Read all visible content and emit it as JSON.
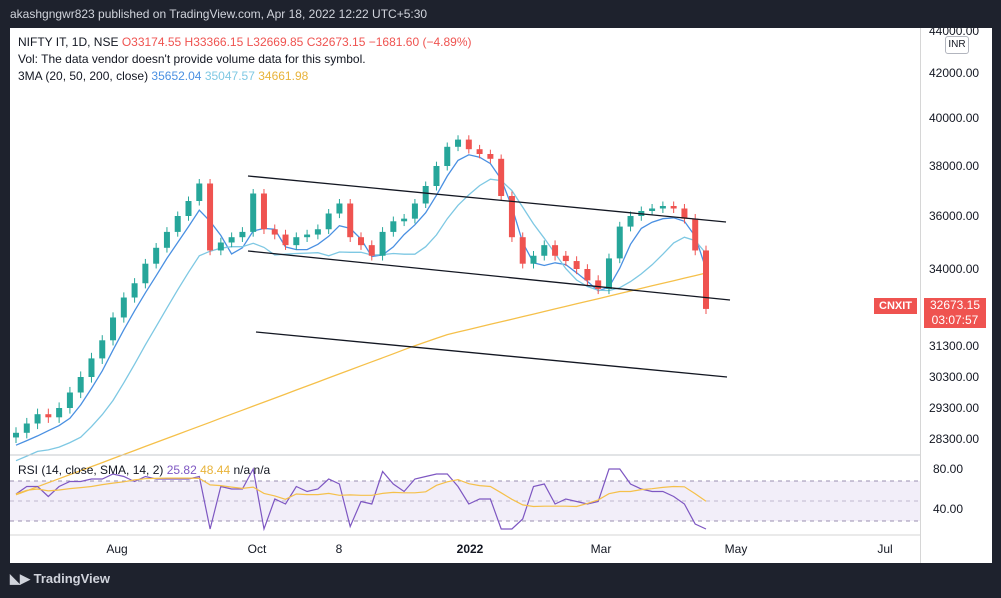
{
  "header": {
    "text": "akashgngwr823 published on TradingView.com, Apr 18, 2022 12:22 UTC+5:30"
  },
  "legend": {
    "symbol": "NIFTY IT, 1D, NSE",
    "open": "O33174.55",
    "high": "H33366.15",
    "low": "L32669.85",
    "close": "C32673.15",
    "change": "−1681.60 (−4.89%)",
    "vol_note": "Vol: The data vendor doesn't provide volume data for this symbol.",
    "sma_label": "3MA (20, 50, 200, close)",
    "sma_values": [
      "35652.04",
      "35047.57",
      "34661.98"
    ],
    "rsi_label": "RSI (14, close, SMA, 14, 2)",
    "rsi_values": [
      "25.82",
      "48.44",
      "n/a",
      "n/a"
    ]
  },
  "currency": "INR",
  "price_badge": {
    "symbol": "CNXIT",
    "price": "32673.15",
    "countdown": "03:07:57"
  },
  "colors": {
    "up": "#26a69a",
    "down": "#ef5350",
    "sma20": "#4a90e2",
    "sma50": "#7ec8e3",
    "sma200": "#f5c04a",
    "rsi": "#7e57c2",
    "rsi_sma": "#f5c04a"
  },
  "footer": {
    "brand": "TradingView"
  },
  "chart_data": {
    "type": "candlestick",
    "price_axis_ticks": [
      "44000.00",
      "42000.00",
      "40000.00",
      "38000.00",
      "36000.00",
      "34000.00",
      "31300.00",
      "30300.00",
      "29300.00",
      "28300.00"
    ],
    "rsi_axis_ticks": [
      "80.00",
      "40.00"
    ],
    "time_axis_ticks": [
      "Aug",
      "Oct",
      "8",
      "2022",
      "Mar",
      "May",
      "Jul"
    ],
    "last_price": 32673.15,
    "trendlines": [
      {
        "name": "upper",
        "from": [
          "Sep 28",
          37700
        ],
        "to": [
          "Apr 20",
          35700
        ]
      },
      {
        "name": "middle",
        "from": [
          "Sep 28",
          34600
        ],
        "to": [
          "Apr 20",
          32500
        ]
      },
      {
        "name": "lower",
        "from": [
          "Oct 1",
          32000
        ],
        "to": [
          "Apr 20",
          30300
        ]
      }
    ],
    "close_series_approx": [
      28500,
      28800,
      29100,
      29000,
      29300,
      29800,
      30300,
      30900,
      31500,
      32300,
      33000,
      33500,
      34200,
      34800,
      35400,
      36000,
      36600,
      37300,
      34700,
      35000,
      35200,
      35400,
      36900,
      35500,
      35300,
      34900,
      35200,
      35300,
      35500,
      36100,
      36500,
      35200,
      34900,
      34500,
      35400,
      35800,
      35900,
      36500,
      37200,
      38000,
      38800,
      39100,
      38700,
      38500,
      38300,
      36800,
      35200,
      34200,
      34500,
      34900,
      34500,
      34300,
      34000,
      33600,
      33300,
      34400,
      35600,
      36000,
      36200,
      36300,
      36400,
      36300,
      35900,
      34700,
      32600
    ]
  }
}
